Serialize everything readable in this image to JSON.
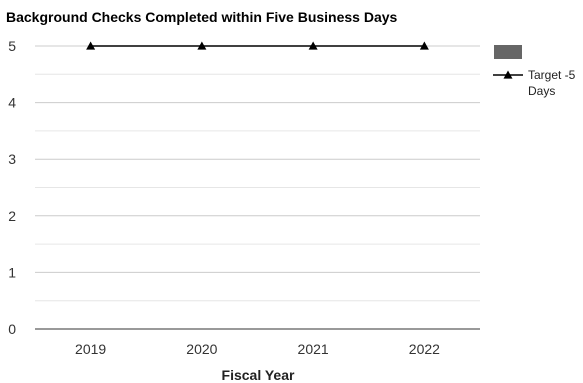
{
  "chart_data": {
    "type": "bar",
    "title": "Background Checks Completed within Five Business Days",
    "xlabel": "Fiscal Year",
    "ylabel": "",
    "categories": [
      "2019",
      "2020",
      "2021",
      "2022"
    ],
    "ylim": [
      0,
      5
    ],
    "yticks": [
      "0",
      "1",
      "2",
      "3",
      "4",
      "5"
    ],
    "grid": true,
    "legend_position": "right",
    "series": [
      {
        "name": "",
        "kind": "bar",
        "color": "#666666",
        "values": [
          0,
          0,
          0,
          0
        ]
      },
      {
        "name": "Target -5 Days",
        "name_lines": [
          "Target -5",
          "Days"
        ],
        "kind": "line",
        "marker": "triangle",
        "color": "#000000",
        "values": [
          5,
          5,
          5,
          5
        ]
      }
    ]
  }
}
